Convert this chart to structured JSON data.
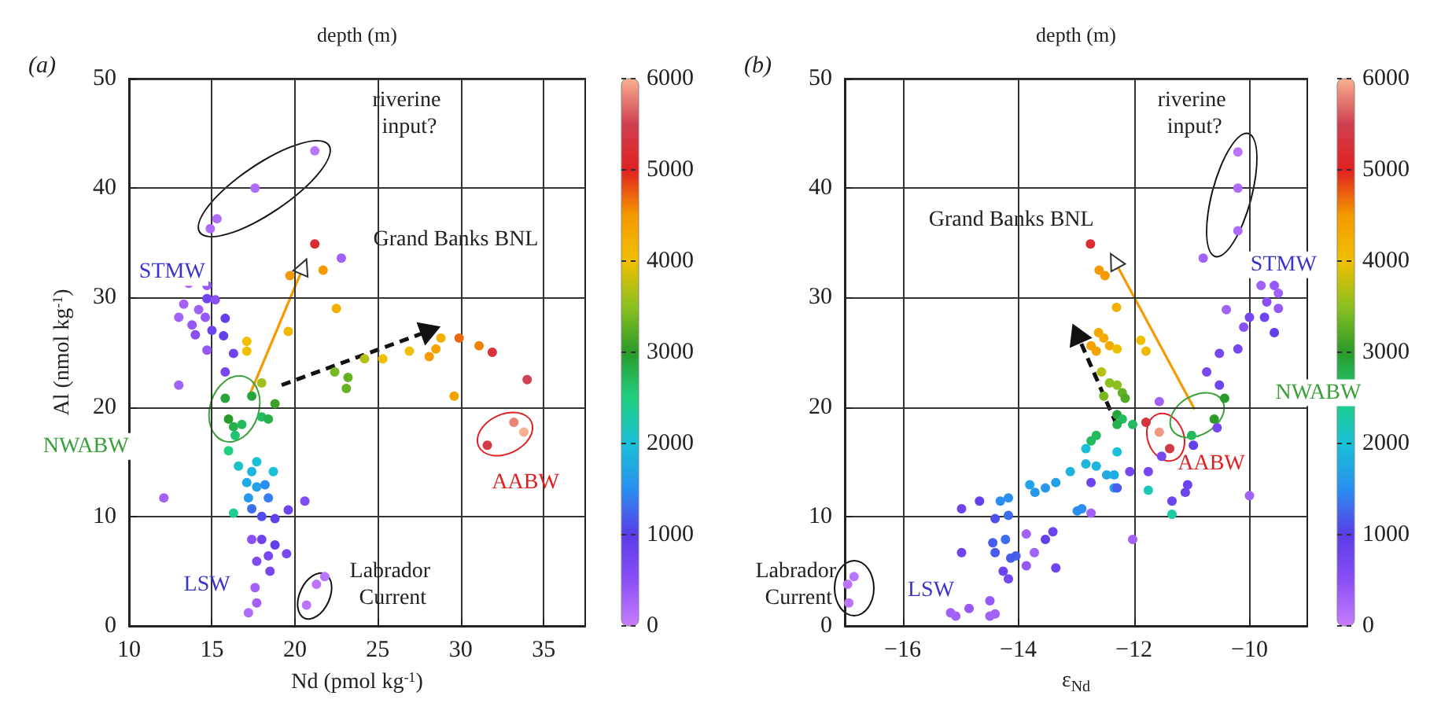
{
  "chart_data": [
    {
      "type": "scatter",
      "clabel": "depth (m)",
      "xlabel": "Nd (pmol kg$^{-1}$)",
      "ylabel": "Al (nmol kg$^{-1}$)",
      "annotations": [
        "(a)",
        "riverine input?",
        "Grand Banks BNL",
        "STMW",
        "NWABW",
        "AABW",
        "LSW",
        "Labrador Current"
      ],
      "x": [
        21.2,
        17.6,
        15.3,
        14.9,
        21.2,
        22.8,
        19.7,
        21.7,
        22.5,
        19.6,
        13.6,
        14.7,
        13.3,
        14.2,
        14.7,
        15.2,
        13.0,
        13.8,
        14.6,
        15.8,
        14.0,
        15.0,
        15.7,
        14.7,
        16.3,
        15.8,
        13.0,
        12.1,
        17.1,
        17.1,
        18.0,
        22.4,
        23.2,
        23.1,
        24.2,
        25.3,
        26.9,
        28.1,
        28.5,
        28.8,
        29.9,
        31.1,
        31.9,
        34.0,
        29.6,
        31.6,
        33.2,
        33.8,
        15.8,
        16.0,
        16.3,
        16.4,
        17.4,
        18.0,
        18.4,
        18.8,
        16.8,
        16.6,
        17.4,
        17.7,
        17.1,
        18.2,
        18.7,
        16.3,
        17.4,
        18.0,
        16.0,
        17.7,
        18.4,
        17.2,
        18.8,
        19.6,
        20.6,
        17.4,
        18.0,
        18.8,
        18.4,
        17.7,
        18.5,
        19.5,
        17.6,
        17.7,
        17.2,
        20.7,
        21.3,
        21.8
      ],
      "values": [
        43.4,
        40.0,
        37.2,
        36.3,
        34.9,
        33.6,
        32.0,
        32.5,
        29.0,
        26.9,
        31.3,
        31.1,
        29.4,
        28.9,
        29.9,
        29.8,
        28.2,
        27.5,
        28.2,
        28.1,
        26.6,
        27.0,
        26.5,
        25.2,
        24.9,
        23.2,
        22.0,
        11.7,
        26.0,
        25.1,
        22.2,
        23.2,
        22.7,
        21.7,
        24.4,
        24.4,
        25.1,
        24.6,
        25.3,
        26.3,
        26.3,
        25.6,
        25.0,
        22.5,
        21.0,
        16.5,
        18.6,
        17.7,
        20.8,
        18.9,
        18.2,
        17.4,
        21.0,
        19.1,
        18.9,
        20.3,
        18.4,
        14.6,
        14.1,
        12.7,
        13.1,
        12.9,
        14.1,
        10.3,
        10.7,
        10.0,
        16.0,
        15.0,
        11.7,
        11.7,
        9.8,
        10.6,
        11.4,
        7.9,
        7.9,
        7.4,
        6.4,
        5.9,
        5.0,
        6.6,
        3.5,
        2.1,
        1.2,
        1.9,
        3.8,
        4.5
      ],
      "cvalues": [
        100,
        200,
        200,
        200,
        5200,
        300,
        4500,
        4500,
        4200,
        4100,
        300,
        400,
        300,
        300,
        800,
        500,
        300,
        400,
        400,
        900,
        500,
        800,
        900,
        400,
        800,
        700,
        300,
        300,
        4000,
        4000,
        3600,
        3400,
        3300,
        3300,
        3700,
        4000,
        4000,
        4500,
        4400,
        4200,
        4700,
        4600,
        5300,
        5500,
        4400,
        5400,
        5800,
        6000,
        2900,
        3000,
        2800,
        2600,
        2900,
        2700,
        2800,
        3100,
        2700,
        2100,
        1900,
        1700,
        1800,
        1500,
        2000,
        2400,
        1300,
        1100,
        2500,
        2000,
        1400,
        1600,
        900,
        800,
        600,
        500,
        800,
        900,
        700,
        600,
        700,
        700,
        300,
        300,
        200,
        100,
        100,
        100
      ],
      "xlim": [
        10,
        37.5
      ],
      "xticks": [
        10,
        15,
        20,
        25,
        30,
        35
      ],
      "ylim": [
        0,
        50
      ],
      "yticks": [
        0,
        10,
        20,
        30,
        40,
        50
      ],
      "clim": [
        0,
        6000
      ],
      "cticks": [
        0,
        1000,
        2000,
        3000,
        4000,
        5000,
        6000
      ],
      "grid": true,
      "marker": "circle"
    },
    {
      "type": "scatter",
      "clabel": "depth (m)",
      "xlabel": "ε$_{Nd}$",
      "annotations": [
        "(b)",
        "riverine input?",
        "Grand Banks BNL",
        "STMW",
        "NWABW",
        "AABW",
        "LSW",
        "Labrador Current"
      ],
      "x": [
        -12.75,
        -12.6,
        -12.5,
        -12.3,
        -10.2,
        -10.2,
        -10.2,
        -10.8,
        -9.8,
        -9.57,
        -9.5,
        -9.7,
        -9.5,
        -9.74,
        -10.0,
        -10.1,
        -9.57,
        -10.2,
        -10.4,
        -10.0,
        -12.61,
        -12.52,
        -12.74,
        -12.65,
        -12.42,
        -12.29,
        -11.88,
        -11.79,
        -12.56,
        -12.42,
        -12.29,
        -12.2,
        -12.15,
        -12.52,
        -12.29,
        -12.2,
        -12.02,
        -12.29,
        -12.74,
        -12.65,
        -11.79,
        -11.56,
        -11.38,
        -10.43,
        -10.61,
        -11.0,
        -12.83,
        -12.29,
        -12.83,
        -12.65,
        -12.47,
        -12.34,
        -12.34,
        -13.1,
        -13.35,
        -13.53,
        -13.71,
        -13.8,
        -12.98,
        -12.9,
        -11.75,
        -11.34,
        -12.29,
        -12.74,
        -14.98,
        -14.67,
        -14.31,
        -14.17,
        -14.4,
        -14.17,
        -14.44,
        -14.22,
        -14.4,
        -14.13,
        -14.04,
        -14.26,
        -14.17,
        -13.53,
        -13.4,
        -13.86,
        -13.86,
        -13.72,
        -13.35,
        -14.98,
        -14.49,
        -14.4,
        -14.49,
        -14.85,
        -15.17,
        -15.08,
        -12.74,
        -12.07,
        -12.02,
        -11.75,
        -11.56,
        -11.34,
        -11.07,
        -11.11,
        -10.97,
        -10.74,
        -10.52,
        -10.52,
        -10.56,
        -11.52,
        -16.93,
        -16.84,
        -16.95
      ],
      "values": [
        34.9,
        32.5,
        32.0,
        29.1,
        43.3,
        40.0,
        36.1,
        33.6,
        31.1,
        31.1,
        30.4,
        29.6,
        29.0,
        28.2,
        28.2,
        27.3,
        26.8,
        25.3,
        28.9,
        11.9,
        26.8,
        26.3,
        25.6,
        25.1,
        25.6,
        25.3,
        26.1,
        25.1,
        23.2,
        22.2,
        22.0,
        21.3,
        20.8,
        21.0,
        19.3,
        18.9,
        18.4,
        18.4,
        16.9,
        17.4,
        18.6,
        17.7,
        16.2,
        20.8,
        18.9,
        17.4,
        16.2,
        15.9,
        14.8,
        14.6,
        13.8,
        13.8,
        12.6,
        14.1,
        13.1,
        12.6,
        12.2,
        12.9,
        10.5,
        10.7,
        12.4,
        10.2,
        12.6,
        13.1,
        10.7,
        11.4,
        11.4,
        11.7,
        9.8,
        10.1,
        7.6,
        7.9,
        6.7,
        6.2,
        6.4,
        5.0,
        4.3,
        7.9,
        8.6,
        8.4,
        5.5,
        6.7,
        5.3,
        6.7,
        2.3,
        1.1,
        0.9,
        1.6,
        1.2,
        0.9,
        10.3,
        14.1,
        7.9,
        14.1,
        20.5,
        11.4,
        12.9,
        12.2,
        16.5,
        23.2,
        24.9,
        22.0,
        18.1,
        15.5,
        2.1,
        4.5,
        3.8
      ],
      "cvalues": [
        5200,
        4500,
        4500,
        4200,
        100,
        200,
        200,
        300,
        300,
        400,
        300,
        500,
        400,
        800,
        700,
        500,
        900,
        700,
        300,
        300,
        4300,
        4300,
        4400,
        4400,
        4300,
        4000,
        4000,
        4100,
        3700,
        3500,
        3500,
        3300,
        3200,
        3400,
        2900,
        2700,
        2700,
        2800,
        2700,
        2700,
        5300,
        5900,
        5400,
        3000,
        3000,
        2700,
        2000,
        2000,
        1900,
        1900,
        1800,
        1800,
        1600,
        1900,
        1700,
        1600,
        1600,
        1700,
        1500,
        1500,
        2200,
        2300,
        1200,
        800,
        800,
        900,
        1500,
        1500,
        1100,
        1300,
        1200,
        1300,
        1200,
        1200,
        1200,
        800,
        700,
        900,
        800,
        300,
        400,
        300,
        800,
        800,
        400,
        300,
        300,
        400,
        300,
        300,
        300,
        700,
        300,
        700,
        300,
        800,
        800,
        800,
        900,
        700,
        700,
        800,
        700,
        700,
        100,
        100,
        100
      ],
      "xlim": [
        -17,
        -9
      ],
      "xticks": [
        -16,
        -14,
        -12,
        -10
      ],
      "ylim": [
        0,
        50
      ],
      "yticks": [
        0,
        10,
        20,
        30,
        40,
        50
      ],
      "clim": [
        0,
        6000
      ],
      "cticks": [
        0,
        1000,
        2000,
        3000,
        4000,
        5000,
        6000
      ],
      "grid": true,
      "marker": "circle"
    }
  ]
}
